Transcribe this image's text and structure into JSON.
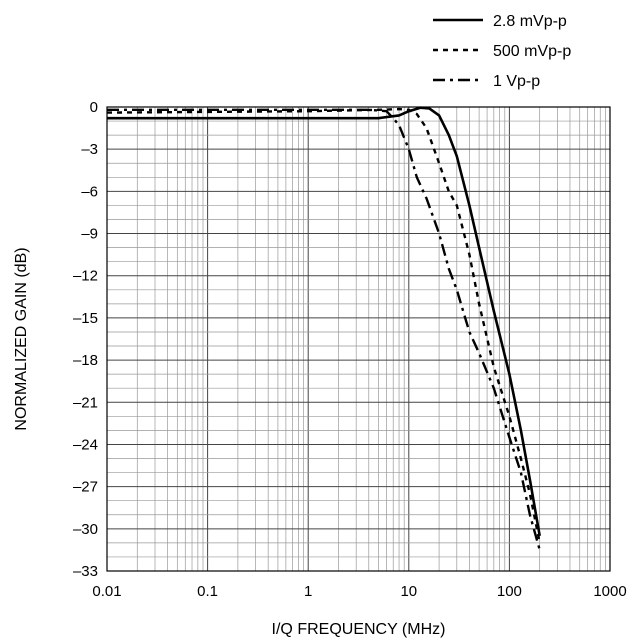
{
  "chart_data": {
    "type": "line",
    "title": "",
    "xlabel": "I/Q FREQUENCY (MHz)",
    "ylabel": "NORMALIZED GAIN (dB)",
    "xscale": "log",
    "xlim": [
      0.01,
      1000
    ],
    "ylim": [
      -33,
      0
    ],
    "grid": true,
    "legend_position": "top-right",
    "x_tick_labels": [
      "0.01",
      "0.1",
      "1",
      "10",
      "100",
      "1000"
    ],
    "y_tick_labels": [
      "0",
      "–3",
      "–6",
      "–9",
      "–12",
      "–15",
      "–18",
      "–21",
      "–24",
      "–27",
      "–30",
      "–33"
    ],
    "series": [
      {
        "name": "2.8 mVp-p",
        "dash": "solid",
        "points": [
          [
            0.01,
            -0.8
          ],
          [
            0.1,
            -0.8
          ],
          [
            1,
            -0.8
          ],
          [
            5,
            -0.8
          ],
          [
            8,
            -0.6
          ],
          [
            10,
            -0.3
          ],
          [
            13,
            -0.05
          ],
          [
            16,
            -0.1
          ],
          [
            20,
            -0.6
          ],
          [
            25,
            -2
          ],
          [
            30,
            -3.5
          ],
          [
            40,
            -7
          ],
          [
            50,
            -10
          ],
          [
            70,
            -14.5
          ],
          [
            100,
            -19
          ],
          [
            130,
            -23
          ],
          [
            160,
            -26.5
          ],
          [
            200,
            -30.5
          ]
        ]
      },
      {
        "name": "500 mVp-p",
        "dash": "short-dash",
        "points": [
          [
            0.01,
            -0.4
          ],
          [
            0.1,
            -0.35
          ],
          [
            1,
            -0.3
          ],
          [
            5,
            -0.2
          ],
          [
            8,
            -0.15
          ],
          [
            10,
            -0.2
          ],
          [
            12,
            -0.5
          ],
          [
            15,
            -1.5
          ],
          [
            20,
            -4
          ],
          [
            25,
            -6
          ],
          [
            30,
            -7
          ],
          [
            40,
            -10.5
          ],
          [
            50,
            -14
          ],
          [
            70,
            -18.5
          ],
          [
            100,
            -22
          ],
          [
            130,
            -25
          ],
          [
            160,
            -27.5
          ],
          [
            200,
            -31
          ]
        ]
      },
      {
        "name": "1 Vp-p",
        "dash": "dash-dot",
        "points": [
          [
            0.01,
            -0.2
          ],
          [
            0.1,
            -0.2
          ],
          [
            1,
            -0.2
          ],
          [
            4,
            -0.2
          ],
          [
            6,
            -0.3
          ],
          [
            7,
            -0.8
          ],
          [
            8,
            -1.3
          ],
          [
            10,
            -3
          ],
          [
            12,
            -5
          ],
          [
            15,
            -6.5
          ],
          [
            20,
            -9
          ],
          [
            25,
            -11.5
          ],
          [
            30,
            -13
          ],
          [
            40,
            -16
          ],
          [
            50,
            -17.5
          ],
          [
            70,
            -20
          ],
          [
            100,
            -23.5
          ],
          [
            130,
            -26
          ],
          [
            160,
            -29
          ],
          [
            200,
            -31.5
          ]
        ]
      }
    ]
  }
}
